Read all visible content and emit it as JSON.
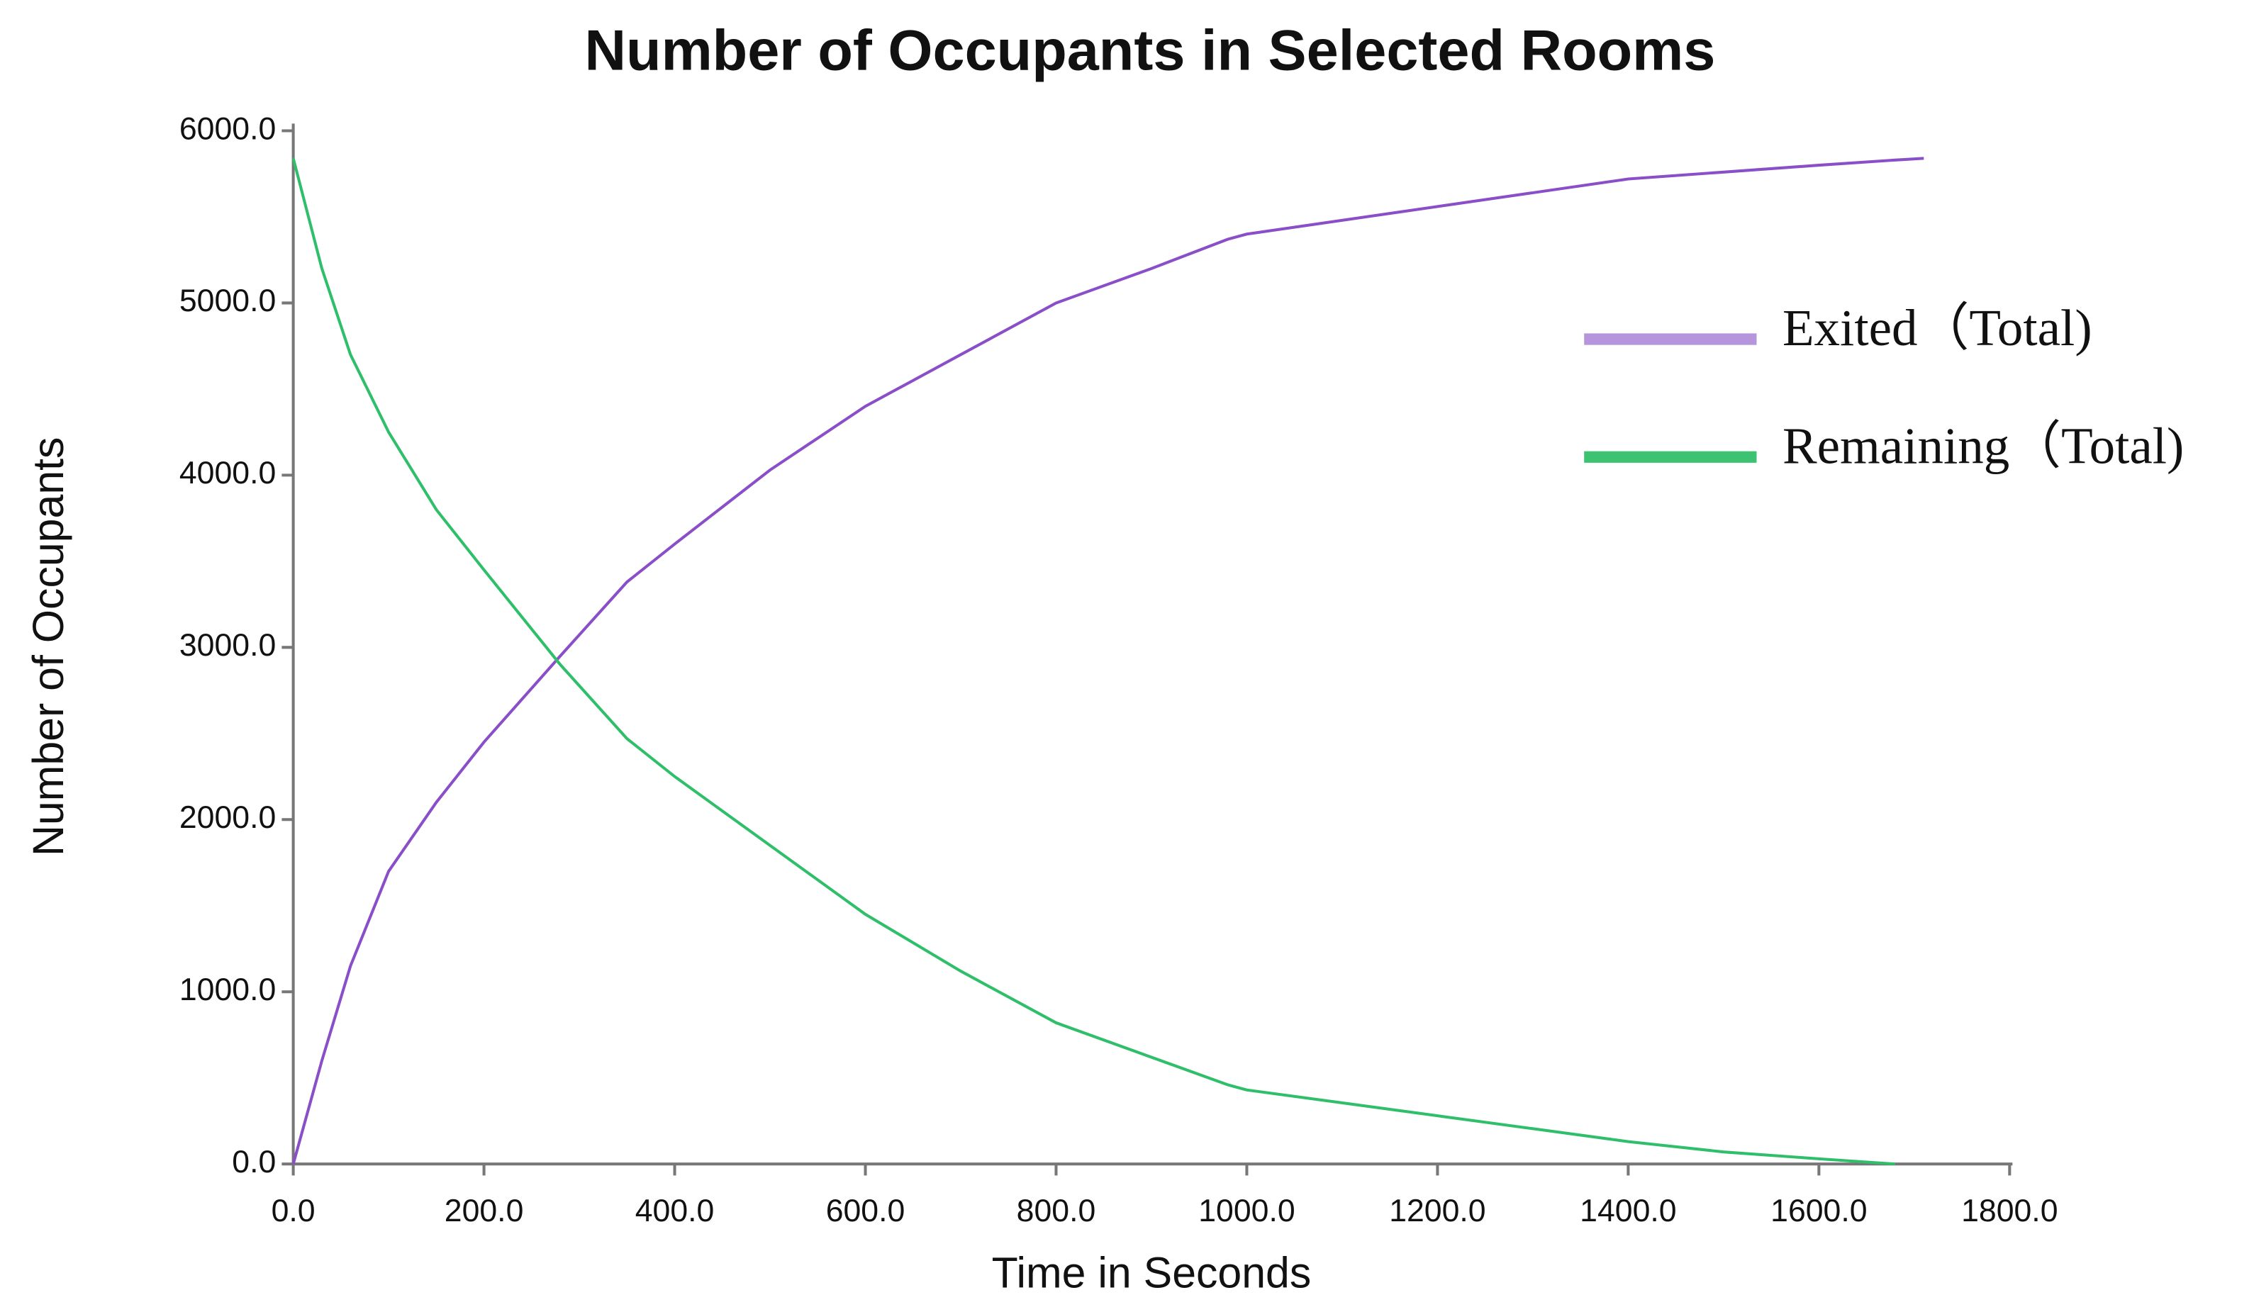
{
  "chart_data": {
    "type": "line",
    "title": "Number of Occupants in Selected Rooms",
    "x_label": "Time in Seconds",
    "y_label": "Number of Occupants",
    "x": [
      0,
      30,
      60,
      100,
      150,
      200,
      280,
      350,
      400,
      500,
      600,
      700,
      800,
      900,
      980,
      1000,
      1200,
      1400,
      1500,
      1600,
      1680,
      1710
    ],
    "series": [
      {
        "name": "Exited（Total)",
        "color": "#8a4fc8",
        "legend_color": "#b595dc",
        "values": [
          0,
          600,
          1150,
          1700,
          2100,
          2450,
          2950,
          3380,
          3600,
          4030,
          4400,
          4700,
          5000,
          5200,
          5370,
          5400,
          5560,
          5720,
          5760,
          5800,
          5830,
          5840
        ]
      },
      {
        "name": "Remaining（Total)",
        "color": "#2fbf6a",
        "legend_color": "#3cc271",
        "values": [
          5840,
          5200,
          4700,
          4250,
          3800,
          3450,
          2900,
          2470,
          2250,
          1850,
          1450,
          1120,
          820,
          620,
          460,
          430,
          280,
          130,
          70,
          30,
          0,
          null
        ]
      }
    ],
    "xlim": [
      0,
      1800
    ],
    "xticks": [
      {
        "value": 0,
        "label": "0.0"
      },
      {
        "value": 200,
        "label": "200.0"
      },
      {
        "value": 400,
        "label": "400.0"
      },
      {
        "value": 600,
        "label": "600.0"
      },
      {
        "value": 800,
        "label": "800.0"
      },
      {
        "value": 1000,
        "label": "1000.0"
      },
      {
        "value": 1200,
        "label": "1200.0"
      },
      {
        "value": 1400,
        "label": "1400.0"
      },
      {
        "value": 1600,
        "label": "1600.0"
      },
      {
        "value": 1800,
        "label": "1800.0"
      }
    ],
    "ylim": [
      0,
      6000
    ],
    "yticks": [
      {
        "value": 0,
        "label": "0.0"
      },
      {
        "value": 1000,
        "label": "1000.0"
      },
      {
        "value": 2000,
        "label": "2000.0"
      },
      {
        "value": 3000,
        "label": "3000.0"
      },
      {
        "value": 4000,
        "label": "4000.0"
      },
      {
        "value": 5000,
        "label": "5000.0"
      },
      {
        "value": 6000,
        "label": "6000.0"
      }
    ],
    "grid": false,
    "legend_position": "right"
  }
}
